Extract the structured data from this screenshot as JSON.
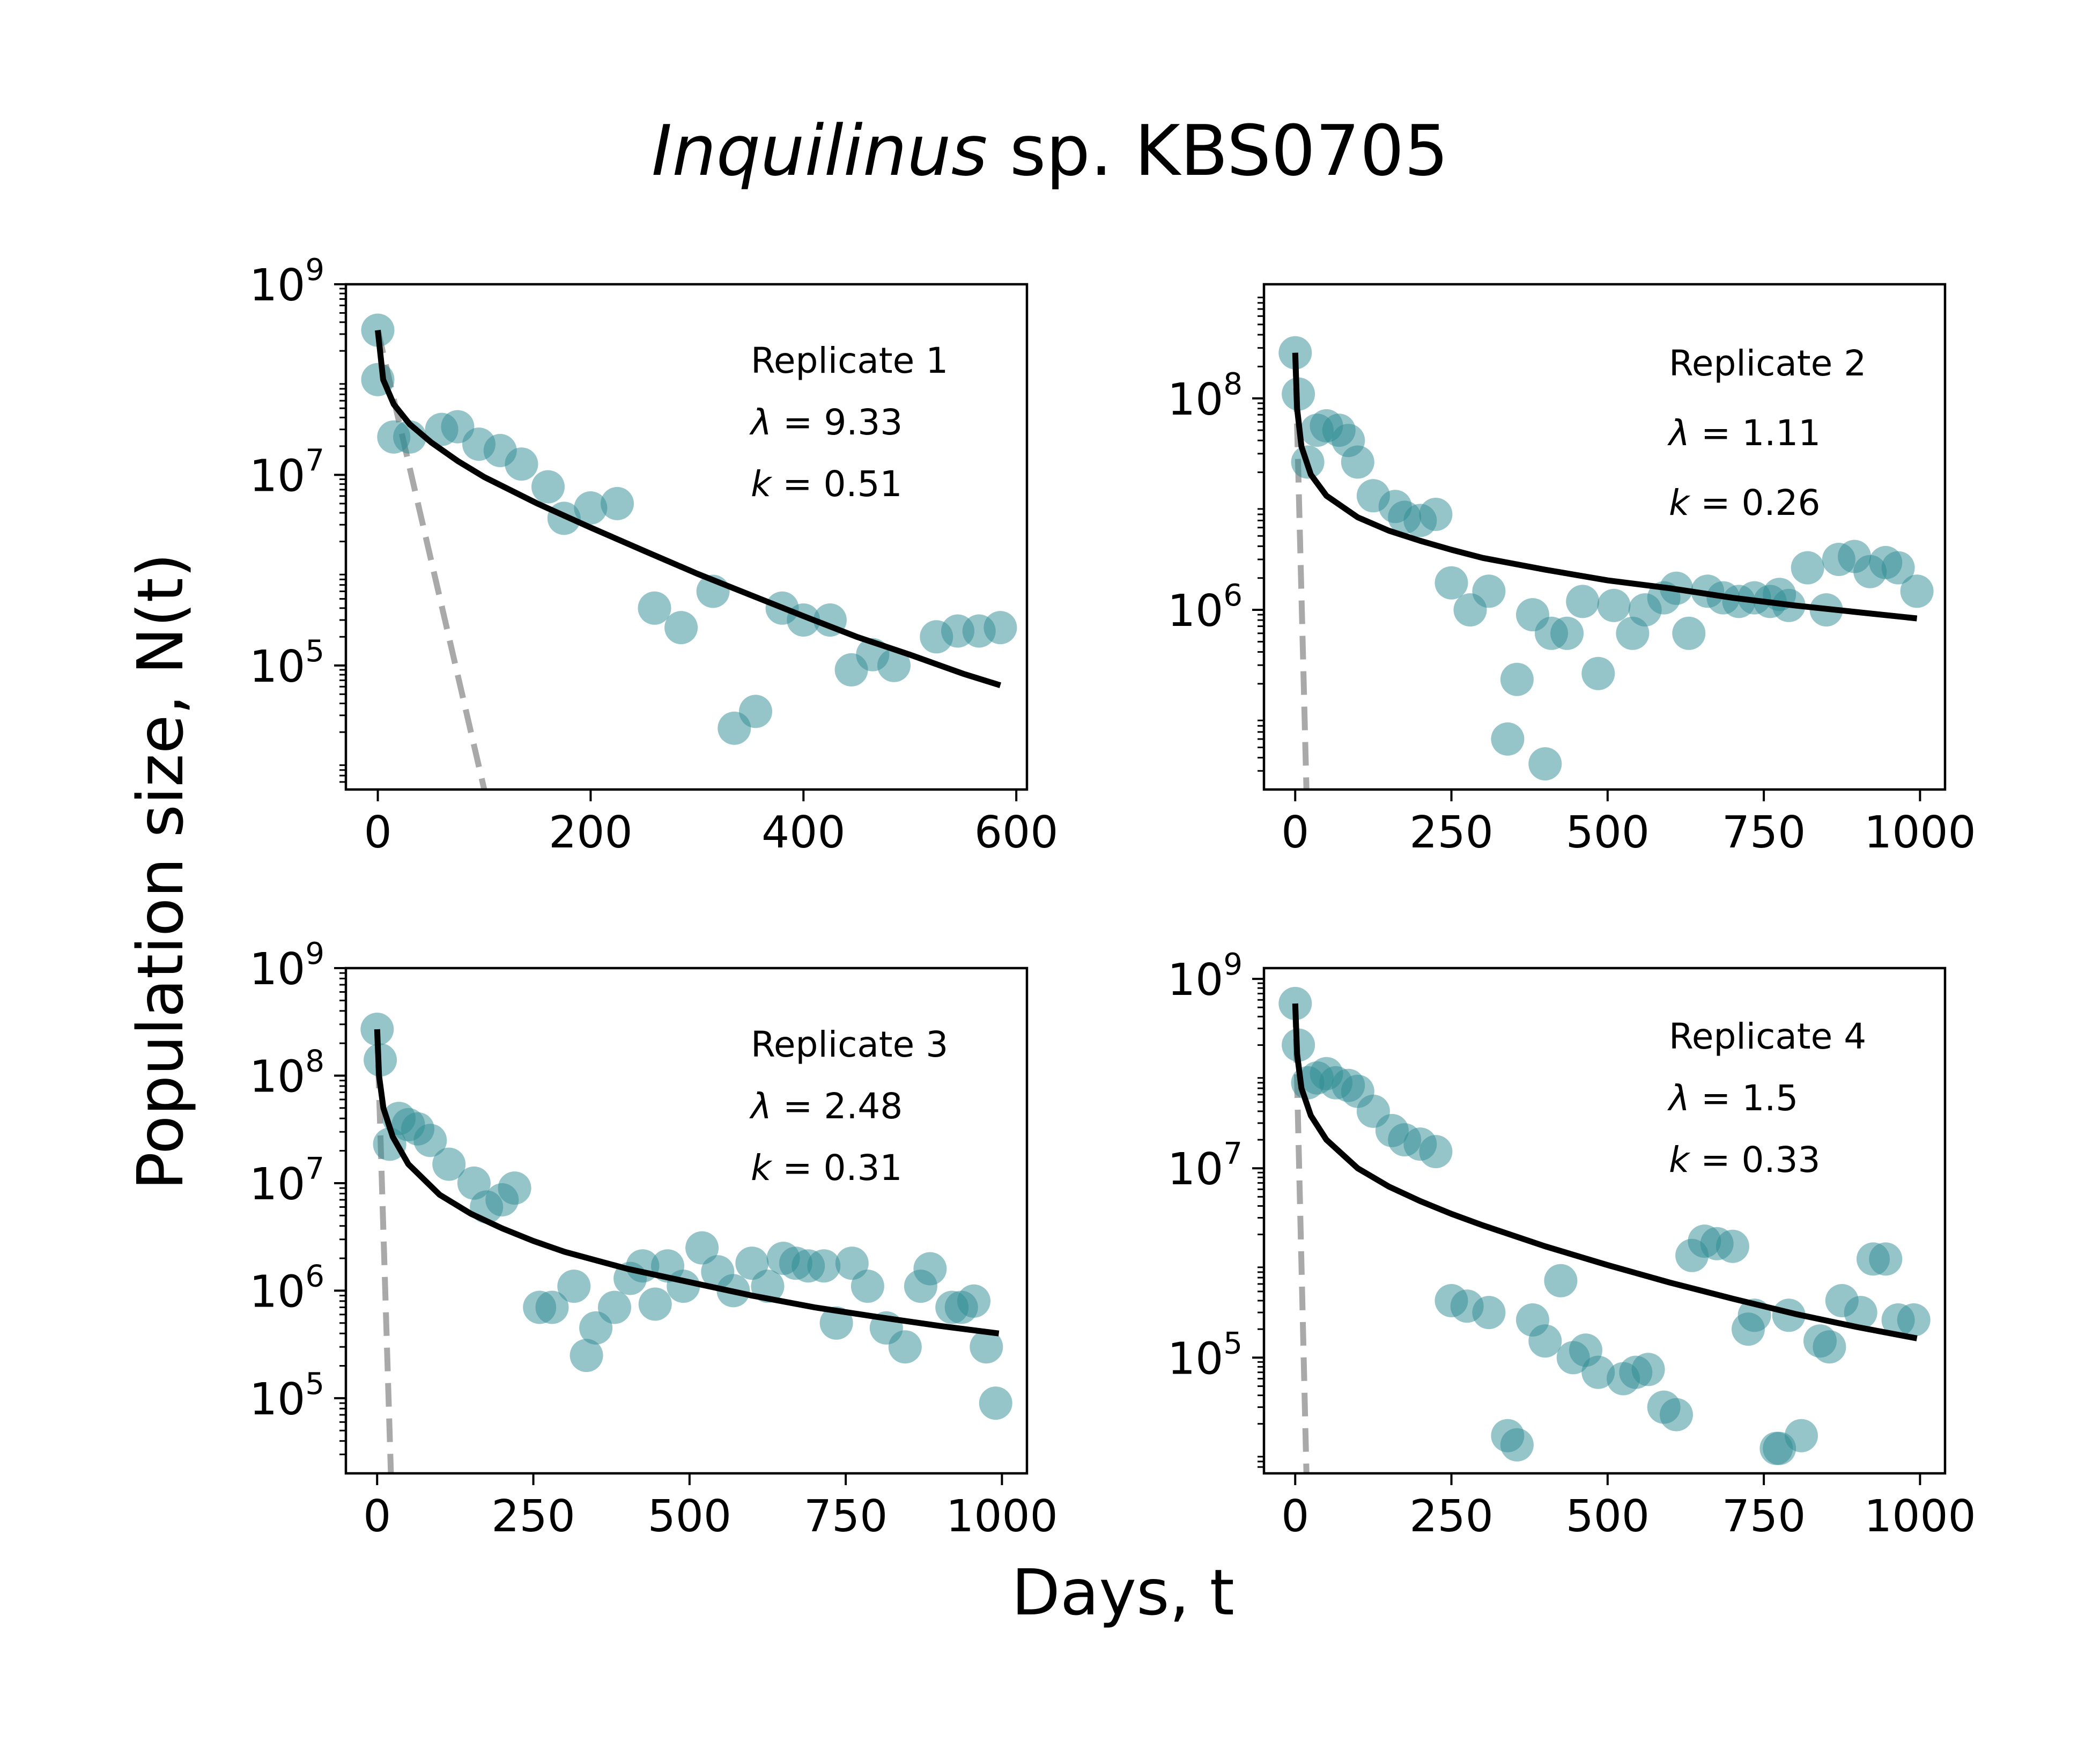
{
  "figure": {
    "title_italic": "Inquilinus",
    "title_rest": " sp. KBS0705",
    "xlabel": "Days, t",
    "ylabel": "Population size, N(t)"
  },
  "colors": {
    "points": "#2e8b93",
    "fit": "#000000",
    "reference": "#a9a9a9"
  },
  "chart_data": [
    {
      "type": "scatter",
      "label": "Replicate 1",
      "lambda": 9.33,
      "k": 0.51,
      "lambda_text": "λ = 9.33",
      "k_text": "k = 0.51",
      "xlim": [
        -30,
        610
      ],
      "ylim": [
        5000,
        1000000000
      ],
      "yscale": "log",
      "xticks": [
        0,
        200,
        400,
        600
      ],
      "yticks": [
        100000,
        10000000,
        1000000000
      ],
      "ytick_labels": [
        {
          "base": "10",
          "exp": "5"
        },
        {
          "base": "10",
          "exp": "7"
        },
        {
          "base": "10",
          "exp": "9"
        }
      ],
      "points": [
        [
          0,
          330000000.0
        ],
        [
          0,
          100000000.0
        ],
        [
          15,
          25000000.0
        ],
        [
          30,
          25000000.0
        ],
        [
          60,
          30000000.0
        ],
        [
          75,
          32000000.0
        ],
        [
          95,
          21000000.0
        ],
        [
          115,
          18000000.0
        ],
        [
          135,
          13000000.0
        ],
        [
          160,
          7500000.0
        ],
        [
          175,
          3500000.0
        ],
        [
          200,
          4500000.0
        ],
        [
          225,
          5000000.0
        ],
        [
          260,
          400000.0
        ],
        [
          285,
          250000.0
        ],
        [
          315,
          600000.0
        ],
        [
          335,
          22000.0
        ],
        [
          355,
          33000.0
        ],
        [
          380,
          400000.0
        ],
        [
          400,
          300000.0
        ],
        [
          425,
          300000.0
        ],
        [
          445,
          90000.0
        ],
        [
          465,
          130000.0
        ],
        [
          485,
          100000.0
        ],
        [
          525,
          200000.0
        ],
        [
          545,
          230000.0
        ],
        [
          565,
          230000.0
        ],
        [
          585,
          250000.0
        ]
      ],
      "fit": [
        [
          0,
          330000000.0
        ],
        [
          5,
          100000000.0
        ],
        [
          15,
          55000000.0
        ],
        [
          30,
          34000000.0
        ],
        [
          50,
          22000000.0
        ],
        [
          75,
          14000000.0
        ],
        [
          100,
          9500000.0
        ],
        [
          150,
          5000000.0
        ],
        [
          200,
          2800000.0
        ],
        [
          250,
          1600000.0
        ],
        [
          300,
          920000.0
        ],
        [
          350,
          550000.0
        ],
        [
          400,
          330000.0
        ],
        [
          450,
          200000.0
        ],
        [
          500,
          130000.0
        ],
        [
          550,
          82000.0
        ],
        [
          585,
          62000.0
        ]
      ],
      "reference": [
        [
          0,
          330000000.0
        ],
        [
          100,
          5000
        ]
      ]
    },
    {
      "type": "scatter",
      "label": "Replicate 2",
      "lambda": 1.11,
      "k": 0.26,
      "lambda_text": "λ = 1.11",
      "k_text": "k = 0.26",
      "xlim": [
        -50,
        1040
      ],
      "ylim": [
        20000,
        1200000000
      ],
      "yscale": "log",
      "xticks": [
        0,
        250,
        500,
        750,
        1000
      ],
      "yticks": [
        1000000,
        100000000
      ],
      "ytick_labels": [
        {
          "base": "10",
          "exp": "6"
        },
        {
          "base": "10",
          "exp": "8"
        }
      ],
      "points": [
        [
          0,
          270000000.0
        ],
        [
          5,
          110000000.0
        ],
        [
          20,
          25000000.0
        ],
        [
          35,
          50000000.0
        ],
        [
          50,
          55000000.0
        ],
        [
          70,
          50000000.0
        ],
        [
          85,
          40000000.0
        ],
        [
          100,
          25000000.0
        ],
        [
          125,
          12000000.0
        ],
        [
          160,
          9500000.0
        ],
        [
          175,
          7500000.0
        ],
        [
          200,
          7000000.0
        ],
        [
          225,
          8000000.0
        ],
        [
          250,
          1800000.0
        ],
        [
          280,
          1000000.0
        ],
        [
          310,
          1500000.0
        ],
        [
          340,
          60000.0
        ],
        [
          355,
          220000.0
        ],
        [
          380,
          900000.0
        ],
        [
          400,
          35000.0
        ],
        [
          410,
          600000.0
        ],
        [
          435,
          600000.0
        ],
        [
          460,
          1200000.0
        ],
        [
          485,
          250000.0
        ],
        [
          510,
          1100000.0
        ],
        [
          540,
          600000.0
        ],
        [
          560,
          1000000.0
        ],
        [
          590,
          1300000.0
        ],
        [
          610,
          1600000.0
        ],
        [
          630,
          600000.0
        ],
        [
          660,
          1500000.0
        ],
        [
          685,
          1300000.0
        ],
        [
          710,
          1200000.0
        ],
        [
          735,
          1300000.0
        ],
        [
          760,
          1200000.0
        ],
        [
          775,
          1400000.0
        ],
        [
          790,
          1100000.0
        ],
        [
          820,
          2500000.0
        ],
        [
          850,
          1000000.0
        ],
        [
          870,
          3000000.0
        ],
        [
          895,
          3200000.0
        ],
        [
          920,
          2300000.0
        ],
        [
          945,
          2800000.0
        ],
        [
          965,
          2500000.0
        ],
        [
          995,
          1500000.0
        ]
      ],
      "fit": [
        [
          0,
          270000000.0
        ],
        [
          3,
          80000000.0
        ],
        [
          10,
          35000000.0
        ],
        [
          25,
          19000000.0
        ],
        [
          50,
          12000000.0
        ],
        [
          100,
          7500000.0
        ],
        [
          150,
          5600000.0
        ],
        [
          200,
          4500000.0
        ],
        [
          250,
          3700000.0
        ],
        [
          300,
          3100000.0
        ],
        [
          400,
          2400000.0
        ],
        [
          500,
          1900000.0
        ],
        [
          600,
          1600000.0
        ],
        [
          700,
          1300000.0
        ],
        [
          800,
          1100000.0
        ],
        [
          900,
          950000.0
        ],
        [
          995,
          830000.0
        ]
      ],
      "reference": [
        [
          0,
          270000000.0
        ],
        [
          18,
          20000
        ]
      ]
    },
    {
      "type": "scatter",
      "label": "Replicate 3",
      "lambda": 2.48,
      "k": 0.31,
      "lambda_text": "λ = 2.48",
      "k_text": "k = 0.31",
      "xlim": [
        -50,
        1040
      ],
      "ylim": [
        20000,
        1000000000
      ],
      "yscale": "log",
      "xticks": [
        0,
        250,
        500,
        750,
        1000
      ],
      "yticks": [
        100000,
        1000000,
        10000000,
        100000000,
        1000000000
      ],
      "ytick_labels": [
        {
          "base": "10",
          "exp": "5"
        },
        {
          "base": "10",
          "exp": "6"
        },
        {
          "base": "10",
          "exp": "7"
        },
        {
          "base": "10",
          "exp": "8"
        },
        {
          "base": "10",
          "exp": "9"
        }
      ],
      "points": [
        [
          0,
          270000000.0
        ],
        [
          5,
          140000000.0
        ],
        [
          20,
          23000000.0
        ],
        [
          35,
          40000000.0
        ],
        [
          50,
          35000000.0
        ],
        [
          65,
          32000000.0
        ],
        [
          85,
          25000000.0
        ],
        [
          115,
          15000000.0
        ],
        [
          155,
          10000000.0
        ],
        [
          175,
          6000000.0
        ],
        [
          200,
          7000000.0
        ],
        [
          220,
          9000000.0
        ],
        [
          260,
          700000.0
        ],
        [
          280,
          700000.0
        ],
        [
          315,
          1100000.0
        ],
        [
          335,
          250000.0
        ],
        [
          350,
          450000.0
        ],
        [
          380,
          700000.0
        ],
        [
          405,
          1300000.0
        ],
        [
          425,
          1700000.0
        ],
        [
          445,
          750000.0
        ],
        [
          465,
          1700000.0
        ],
        [
          490,
          1100000.0
        ],
        [
          520,
          2500000.0
        ],
        [
          545,
          1500000.0
        ],
        [
          570,
          1000000.0
        ],
        [
          600,
          1800000.0
        ],
        [
          625,
          1100000.0
        ],
        [
          650,
          2000000.0
        ],
        [
          670,
          1800000.0
        ],
        [
          690,
          1700000.0
        ],
        [
          715,
          1700000.0
        ],
        [
          735,
          500000.0
        ],
        [
          760,
          1800000.0
        ],
        [
          785,
          1100000.0
        ],
        [
          815,
          450000.0
        ],
        [
          845,
          300000.0
        ],
        [
          870,
          1100000.0
        ],
        [
          885,
          1600000.0
        ],
        [
          920,
          700000.0
        ],
        [
          935,
          700000.0
        ],
        [
          955,
          800000.0
        ],
        [
          975,
          300000.0
        ],
        [
          990,
          90000.0
        ]
      ],
      "fit": [
        [
          0,
          270000000.0
        ],
        [
          3,
          100000000.0
        ],
        [
          10,
          50000000.0
        ],
        [
          25,
          27000000.0
        ],
        [
          50,
          15000000.0
        ],
        [
          100,
          7800000.0
        ],
        [
          150,
          5200000.0
        ],
        [
          200,
          3800000.0
        ],
        [
          250,
          2900000.0
        ],
        [
          300,
          2300000.0
        ],
        [
          400,
          1600000.0
        ],
        [
          500,
          1200000.0
        ],
        [
          600,
          900000.0
        ],
        [
          700,
          700000.0
        ],
        [
          800,
          570000.0
        ],
        [
          900,
          470000.0
        ],
        [
          995,
          400000.0
        ]
      ],
      "reference": [
        [
          0,
          270000000.0
        ],
        [
          22,
          20000
        ]
      ]
    },
    {
      "type": "scatter",
      "label": "Replicate 4",
      "lambda": 1.5,
      "k": 0.33,
      "lambda_text": "λ = 1.5",
      "k_text": "k = 0.33",
      "xlim": [
        -50,
        1040
      ],
      "ylim": [
        6000,
        1300000000
      ],
      "yscale": "log",
      "xticks": [
        0,
        250,
        500,
        750,
        1000
      ],
      "yticks": [
        100000,
        10000000,
        1000000000
      ],
      "ytick_labels": [
        {
          "base": "10",
          "exp": "5"
        },
        {
          "base": "10",
          "exp": "7"
        },
        {
          "base": "10",
          "exp": "9"
        }
      ],
      "points": [
        [
          0,
          550000000.0
        ],
        [
          5,
          200000000.0
        ],
        [
          20,
          80000000.0
        ],
        [
          35,
          90000000.0
        ],
        [
          50,
          100000000.0
        ],
        [
          65,
          80000000.0
        ],
        [
          85,
          75000000.0
        ],
        [
          100,
          65000000.0
        ],
        [
          125,
          40000000.0
        ],
        [
          155,
          25000000.0
        ],
        [
          175,
          20000000.0
        ],
        [
          200,
          18000000.0
        ],
        [
          225,
          15000000.0
        ],
        [
          250,
          400000.0
        ],
        [
          275,
          350000.0
        ],
        [
          310,
          300000.0
        ],
        [
          340,
          15000.0
        ],
        [
          355,
          12000.0
        ],
        [
          380,
          250000.0
        ],
        [
          400,
          150000.0
        ],
        [
          425,
          650000.0
        ],
        [
          445,
          100000.0
        ],
        [
          465,
          120000.0
        ],
        [
          485,
          70000.0
        ],
        [
          525,
          60000.0
        ],
        [
          545,
          70000.0
        ],
        [
          565,
          75000.0
        ],
        [
          590,
          30000.0
        ],
        [
          610,
          25000.0
        ],
        [
          635,
          1200000.0
        ],
        [
          655,
          1700000.0
        ],
        [
          675,
          1600000.0
        ],
        [
          700,
          1500000.0
        ],
        [
          725,
          200000.0
        ],
        [
          735,
          280000.0
        ],
        [
          770,
          11000.0
        ],
        [
          775,
          11000.0
        ],
        [
          790,
          280000.0
        ],
        [
          810,
          15000.0
        ],
        [
          840,
          150000.0
        ],
        [
          855,
          130000.0
        ],
        [
          875,
          400000.0
        ],
        [
          905,
          300000.0
        ],
        [
          925,
          1100000.0
        ],
        [
          945,
          1100000.0
        ],
        [
          965,
          250000.0
        ],
        [
          990,
          250000.0
        ]
      ],
      "fit": [
        [
          0,
          550000000.0
        ],
        [
          3,
          160000000.0
        ],
        [
          10,
          70000000.0
        ],
        [
          25,
          36000000.0
        ],
        [
          50,
          20000000.0
        ],
        [
          100,
          10000000.0
        ],
        [
          150,
          6400000.0
        ],
        [
          200,
          4500000.0
        ],
        [
          250,
          3300000.0
        ],
        [
          300,
          2500000.0
        ],
        [
          400,
          1500000.0
        ],
        [
          500,
          950000.0
        ],
        [
          600,
          620000.0
        ],
        [
          700,
          420000.0
        ],
        [
          800,
          290000.0
        ],
        [
          900,
          210000.0
        ],
        [
          995,
          160000.0
        ]
      ],
      "reference": [
        [
          0,
          550000000.0
        ],
        [
          18,
          6000
        ]
      ]
    }
  ]
}
